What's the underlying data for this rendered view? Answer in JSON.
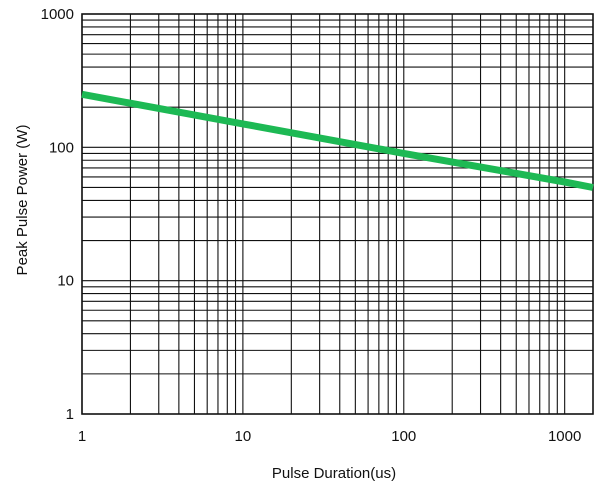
{
  "chart_data": {
    "type": "line",
    "title": "",
    "xlabel": "Pulse Duration(us)",
    "ylabel": "Peak Pulse Power (W)",
    "x_scale": "log",
    "y_scale": "log",
    "xlim": [
      1,
      1500
    ],
    "ylim": [
      1,
      1000
    ],
    "grid": true,
    "x_ticks": [
      {
        "value": 1,
        "label": "1"
      },
      {
        "value": 10,
        "label": "10"
      },
      {
        "value": 100,
        "label": "100"
      },
      {
        "value": 1000,
        "label": "1000"
      }
    ],
    "y_ticks": [
      {
        "value": 1,
        "label": "1"
      },
      {
        "value": 10,
        "label": "10"
      },
      {
        "value": 100,
        "label": "100"
      },
      {
        "value": 1000,
        "label": "1000"
      }
    ],
    "series": [
      {
        "color": "#1db954",
        "x": [
          1,
          10,
          100,
          1000,
          1500
        ],
        "y": [
          250,
          150,
          90,
          55,
          50
        ]
      }
    ]
  }
}
